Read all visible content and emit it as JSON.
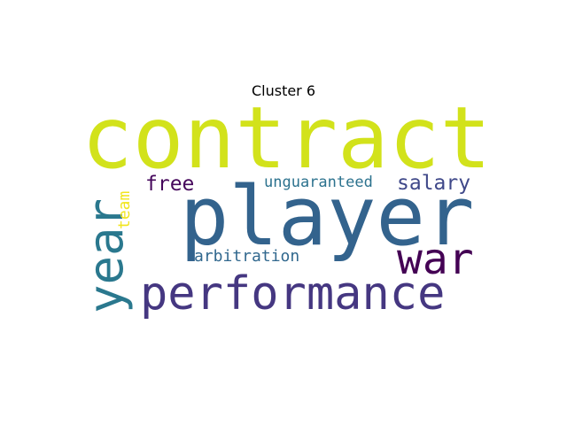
{
  "title": "Cluster 6",
  "words": [
    {
      "id": "contract",
      "text": "contract",
      "color": "#d2e21b",
      "rotated": false
    },
    {
      "id": "player",
      "text": "player",
      "color": "#33638d",
      "rotated": false
    },
    {
      "id": "performance",
      "text": "performance",
      "color": "#453781",
      "rotated": false
    },
    {
      "id": "year",
      "text": "year",
      "color": "#2a788e",
      "rotated": true
    },
    {
      "id": "war",
      "text": "war",
      "color": "#440154",
      "rotated": false
    },
    {
      "id": "salary",
      "text": "salary",
      "color": "#3f4889",
      "rotated": false
    },
    {
      "id": "free",
      "text": "free",
      "color": "#46085c",
      "rotated": false
    },
    {
      "id": "unguaranteed",
      "text": "unguaranteed",
      "color": "#2c728e",
      "rotated": false
    },
    {
      "id": "arbitration",
      "text": "arbitration",
      "color": "#31688e",
      "rotated": false
    },
    {
      "id": "team",
      "text": "team",
      "color": "#f1e51d",
      "rotated": true
    }
  ]
}
